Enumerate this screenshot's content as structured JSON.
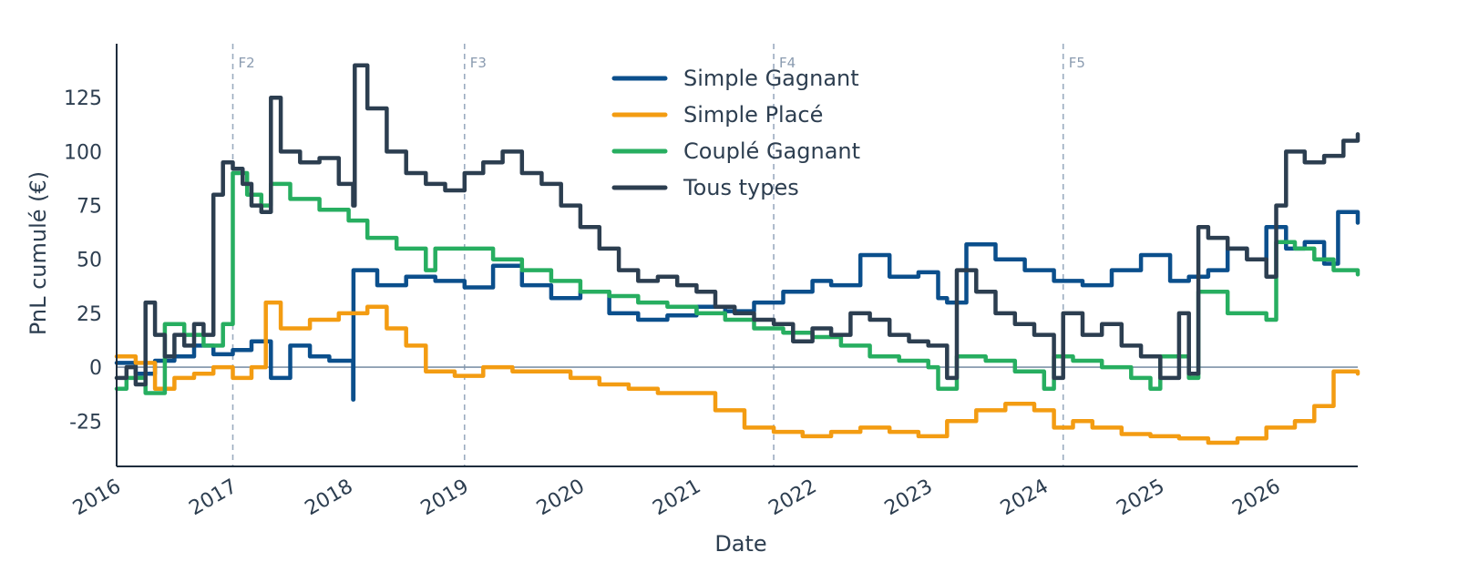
{
  "chart_data": {
    "type": "line",
    "title": "",
    "xlabel": "Date",
    "ylabel": "PnL cumulé (€)",
    "xlim": [
      "2016-01-01",
      "2026-09-15"
    ],
    "ylim": [
      -46,
      150
    ],
    "x_ticks": [
      "2016",
      "2017",
      "2018",
      "2019",
      "2020",
      "2021",
      "2022",
      "2023",
      "2024",
      "2025",
      "2026"
    ],
    "y_ticks": [
      -25,
      0,
      25,
      50,
      75,
      100,
      125
    ],
    "grid": false,
    "legend_position": "top-center",
    "zero_line": 0,
    "vertical_markers": [
      {
        "label": "F2",
        "x": "2017-01-01"
      },
      {
        "label": "F3",
        "x": "2019-01-01"
      },
      {
        "label": "F4",
        "x": "2021-09-01"
      },
      {
        "label": "F5",
        "x": "2024-03-01"
      }
    ],
    "series": [
      {
        "name": "Simple Gagnant",
        "color": "#0b4f8c",
        "x": [
          "2016-01-01",
          "2016-03-01",
          "2016-05-01",
          "2016-07-01",
          "2016-09-01",
          "2016-11-01",
          "2017-01-01",
          "2017-03-01",
          "2017-05-01",
          "2017-07-01",
          "2017-09-01",
          "2017-11-01",
          "2018-01-15",
          "2018-01-16",
          "2018-04-01",
          "2018-07-01",
          "2018-10-01",
          "2019-01-01",
          "2019-04-01",
          "2019-07-01",
          "2019-10-01",
          "2020-01-01",
          "2020-04-01",
          "2020-07-01",
          "2020-10-01",
          "2021-01-01",
          "2021-04-01",
          "2021-07-01",
          "2021-10-01",
          "2022-01-01",
          "2022-03-01",
          "2022-06-01",
          "2022-09-01",
          "2022-12-01",
          "2023-02-01",
          "2023-03-01",
          "2023-05-01",
          "2023-08-01",
          "2023-11-01",
          "2024-02-01",
          "2024-05-01",
          "2024-08-01",
          "2024-11-01",
          "2025-02-01",
          "2025-04-01",
          "2025-06-01",
          "2025-08-01",
          "2025-10-01",
          "2025-12-01",
          "2026-02-01",
          "2026-04-01",
          "2026-06-01",
          "2026-07-15",
          "2026-09-15"
        ],
        "values": [
          2,
          -3,
          3,
          5,
          10,
          6,
          8,
          12,
          -5,
          10,
          5,
          3,
          -15,
          45,
          38,
          42,
          40,
          37,
          47,
          38,
          32,
          35,
          25,
          22,
          24,
          28,
          26,
          30,
          35,
          40,
          38,
          52,
          42,
          44,
          32,
          30,
          57,
          50,
          45,
          40,
          38,
          45,
          52,
          40,
          42,
          45,
          55,
          50,
          65,
          55,
          58,
          48,
          72,
          67
        ]
      },
      {
        "name": "Simple Placé",
        "color": "#f39c12",
        "x": [
          "2016-01-01",
          "2016-03-01",
          "2016-05-01",
          "2016-07-01",
          "2016-09-01",
          "2016-11-01",
          "2017-01-01",
          "2017-03-01",
          "2017-04-15",
          "2017-06-01",
          "2017-09-01",
          "2017-12-01",
          "2018-03-01",
          "2018-05-01",
          "2018-07-01",
          "2018-09-01",
          "2018-12-01",
          "2019-03-01",
          "2019-06-01",
          "2019-09-01",
          "2019-12-01",
          "2020-03-01",
          "2020-06-01",
          "2020-09-01",
          "2020-12-01",
          "2021-03-01",
          "2021-06-01",
          "2021-09-01",
          "2021-12-01",
          "2022-03-01",
          "2022-06-01",
          "2022-09-01",
          "2022-12-01",
          "2023-03-01",
          "2023-06-01",
          "2023-09-01",
          "2023-12-01",
          "2024-02-01",
          "2024-04-01",
          "2024-06-01",
          "2024-09-01",
          "2024-12-01",
          "2025-03-01",
          "2025-06-01",
          "2025-09-01",
          "2025-12-01",
          "2026-03-01",
          "2026-05-01",
          "2026-07-01",
          "2026-09-15"
        ],
        "values": [
          5,
          2,
          -10,
          -5,
          -3,
          0,
          -5,
          0,
          30,
          18,
          22,
          25,
          28,
          18,
          10,
          -2,
          -4,
          0,
          -2,
          -2,
          -5,
          -8,
          -10,
          -12,
          -12,
          -20,
          -28,
          -30,
          -32,
          -30,
          -28,
          -30,
          -32,
          -25,
          -20,
          -17,
          -20,
          -28,
          -25,
          -28,
          -31,
          -32,
          -33,
          -35,
          -33,
          -28,
          -25,
          -18,
          -2,
          -3
        ]
      },
      {
        "name": "Couplé Gagnant",
        "color": "#27ae60",
        "x": [
          "2016-01-01",
          "2016-02-01",
          "2016-04-01",
          "2016-06-01",
          "2016-08-01",
          "2016-10-01",
          "2016-12-01",
          "2017-01-01",
          "2017-02-15",
          "2017-04-01",
          "2017-05-01",
          "2017-07-01",
          "2017-10-01",
          "2018-01-01",
          "2018-03-01",
          "2018-06-01",
          "2018-09-01",
          "2018-10-01",
          "2019-01-01",
          "2019-04-01",
          "2019-07-01",
          "2019-10-01",
          "2020-01-01",
          "2020-04-01",
          "2020-07-01",
          "2020-10-01",
          "2021-01-01",
          "2021-04-01",
          "2021-07-01",
          "2021-10-01",
          "2022-01-01",
          "2022-04-01",
          "2022-07-01",
          "2022-10-01",
          "2023-01-01",
          "2023-02-01",
          "2023-04-01",
          "2023-07-01",
          "2023-10-01",
          "2024-01-01",
          "2024-02-01",
          "2024-04-01",
          "2024-07-01",
          "2024-10-01",
          "2024-12-01",
          "2025-01-01",
          "2025-04-01",
          "2025-05-01",
          "2025-08-01",
          "2025-12-01",
          "2026-01-01",
          "2026-03-01",
          "2026-05-01",
          "2026-07-01",
          "2026-09-15"
        ],
        "values": [
          -10,
          -5,
          -12,
          20,
          15,
          10,
          20,
          90,
          80,
          75,
          85,
          78,
          73,
          68,
          60,
          55,
          45,
          55,
          55,
          50,
          45,
          40,
          35,
          33,
          30,
          28,
          25,
          22,
          18,
          16,
          14,
          10,
          5,
          3,
          0,
          -10,
          5,
          3,
          -2,
          -10,
          5,
          3,
          0,
          -5,
          -10,
          5,
          -5,
          35,
          25,
          22,
          58,
          55,
          50,
          45,
          43
        ]
      },
      {
        "name": "Tous types",
        "color": "#2c3e50",
        "x": [
          "2016-01-01",
          "2016-02-01",
          "2016-03-01",
          "2016-04-01",
          "2016-05-01",
          "2016-06-01",
          "2016-07-01",
          "2016-08-01",
          "2016-09-01",
          "2016-10-01",
          "2016-11-01",
          "2016-12-01",
          "2017-01-01",
          "2017-02-01",
          "2017-03-01",
          "2017-04-01",
          "2017-05-01",
          "2017-06-01",
          "2017-08-01",
          "2017-10-01",
          "2017-12-01",
          "2018-01-15",
          "2018-01-20",
          "2018-03-01",
          "2018-05-01",
          "2018-07-01",
          "2018-09-01",
          "2018-11-01",
          "2019-01-01",
          "2019-03-01",
          "2019-05-01",
          "2019-07-01",
          "2019-09-01",
          "2019-11-01",
          "2020-01-01",
          "2020-03-01",
          "2020-05-01",
          "2020-07-01",
          "2020-09-01",
          "2020-11-01",
          "2021-01-01",
          "2021-03-01",
          "2021-05-01",
          "2021-07-01",
          "2021-09-01",
          "2021-11-01",
          "2022-01-01",
          "2022-03-01",
          "2022-05-01",
          "2022-07-01",
          "2022-09-01",
          "2022-11-01",
          "2023-01-01",
          "2023-03-01",
          "2023-04-01",
          "2023-06-01",
          "2023-08-01",
          "2023-10-01",
          "2023-12-01",
          "2024-02-01",
          "2024-03-01",
          "2024-05-01",
          "2024-07-01",
          "2024-09-01",
          "2024-11-01",
          "2025-01-01",
          "2025-03-01",
          "2025-04-01",
          "2025-05-01",
          "2025-06-01",
          "2025-08-01",
          "2025-10-01",
          "2025-12-01",
          "2026-01-01",
          "2026-02-01",
          "2026-04-01",
          "2026-06-01",
          "2026-08-01",
          "2026-09-15"
        ],
        "values": [
          -5,
          0,
          -8,
          30,
          15,
          5,
          15,
          10,
          20,
          15,
          80,
          95,
          92,
          85,
          75,
          72,
          125,
          100,
          95,
          97,
          85,
          75,
          140,
          120,
          100,
          90,
          85,
          82,
          90,
          95,
          100,
          90,
          85,
          75,
          65,
          55,
          45,
          40,
          42,
          38,
          35,
          28,
          25,
          22,
          20,
          12,
          18,
          15,
          25,
          22,
          15,
          12,
          10,
          -5,
          45,
          35,
          25,
          20,
          15,
          -5,
          25,
          15,
          20,
          10,
          5,
          -5,
          25,
          -3,
          65,
          60,
          55,
          50,
          42,
          75,
          100,
          95,
          98,
          105,
          108
        ]
      }
    ]
  }
}
